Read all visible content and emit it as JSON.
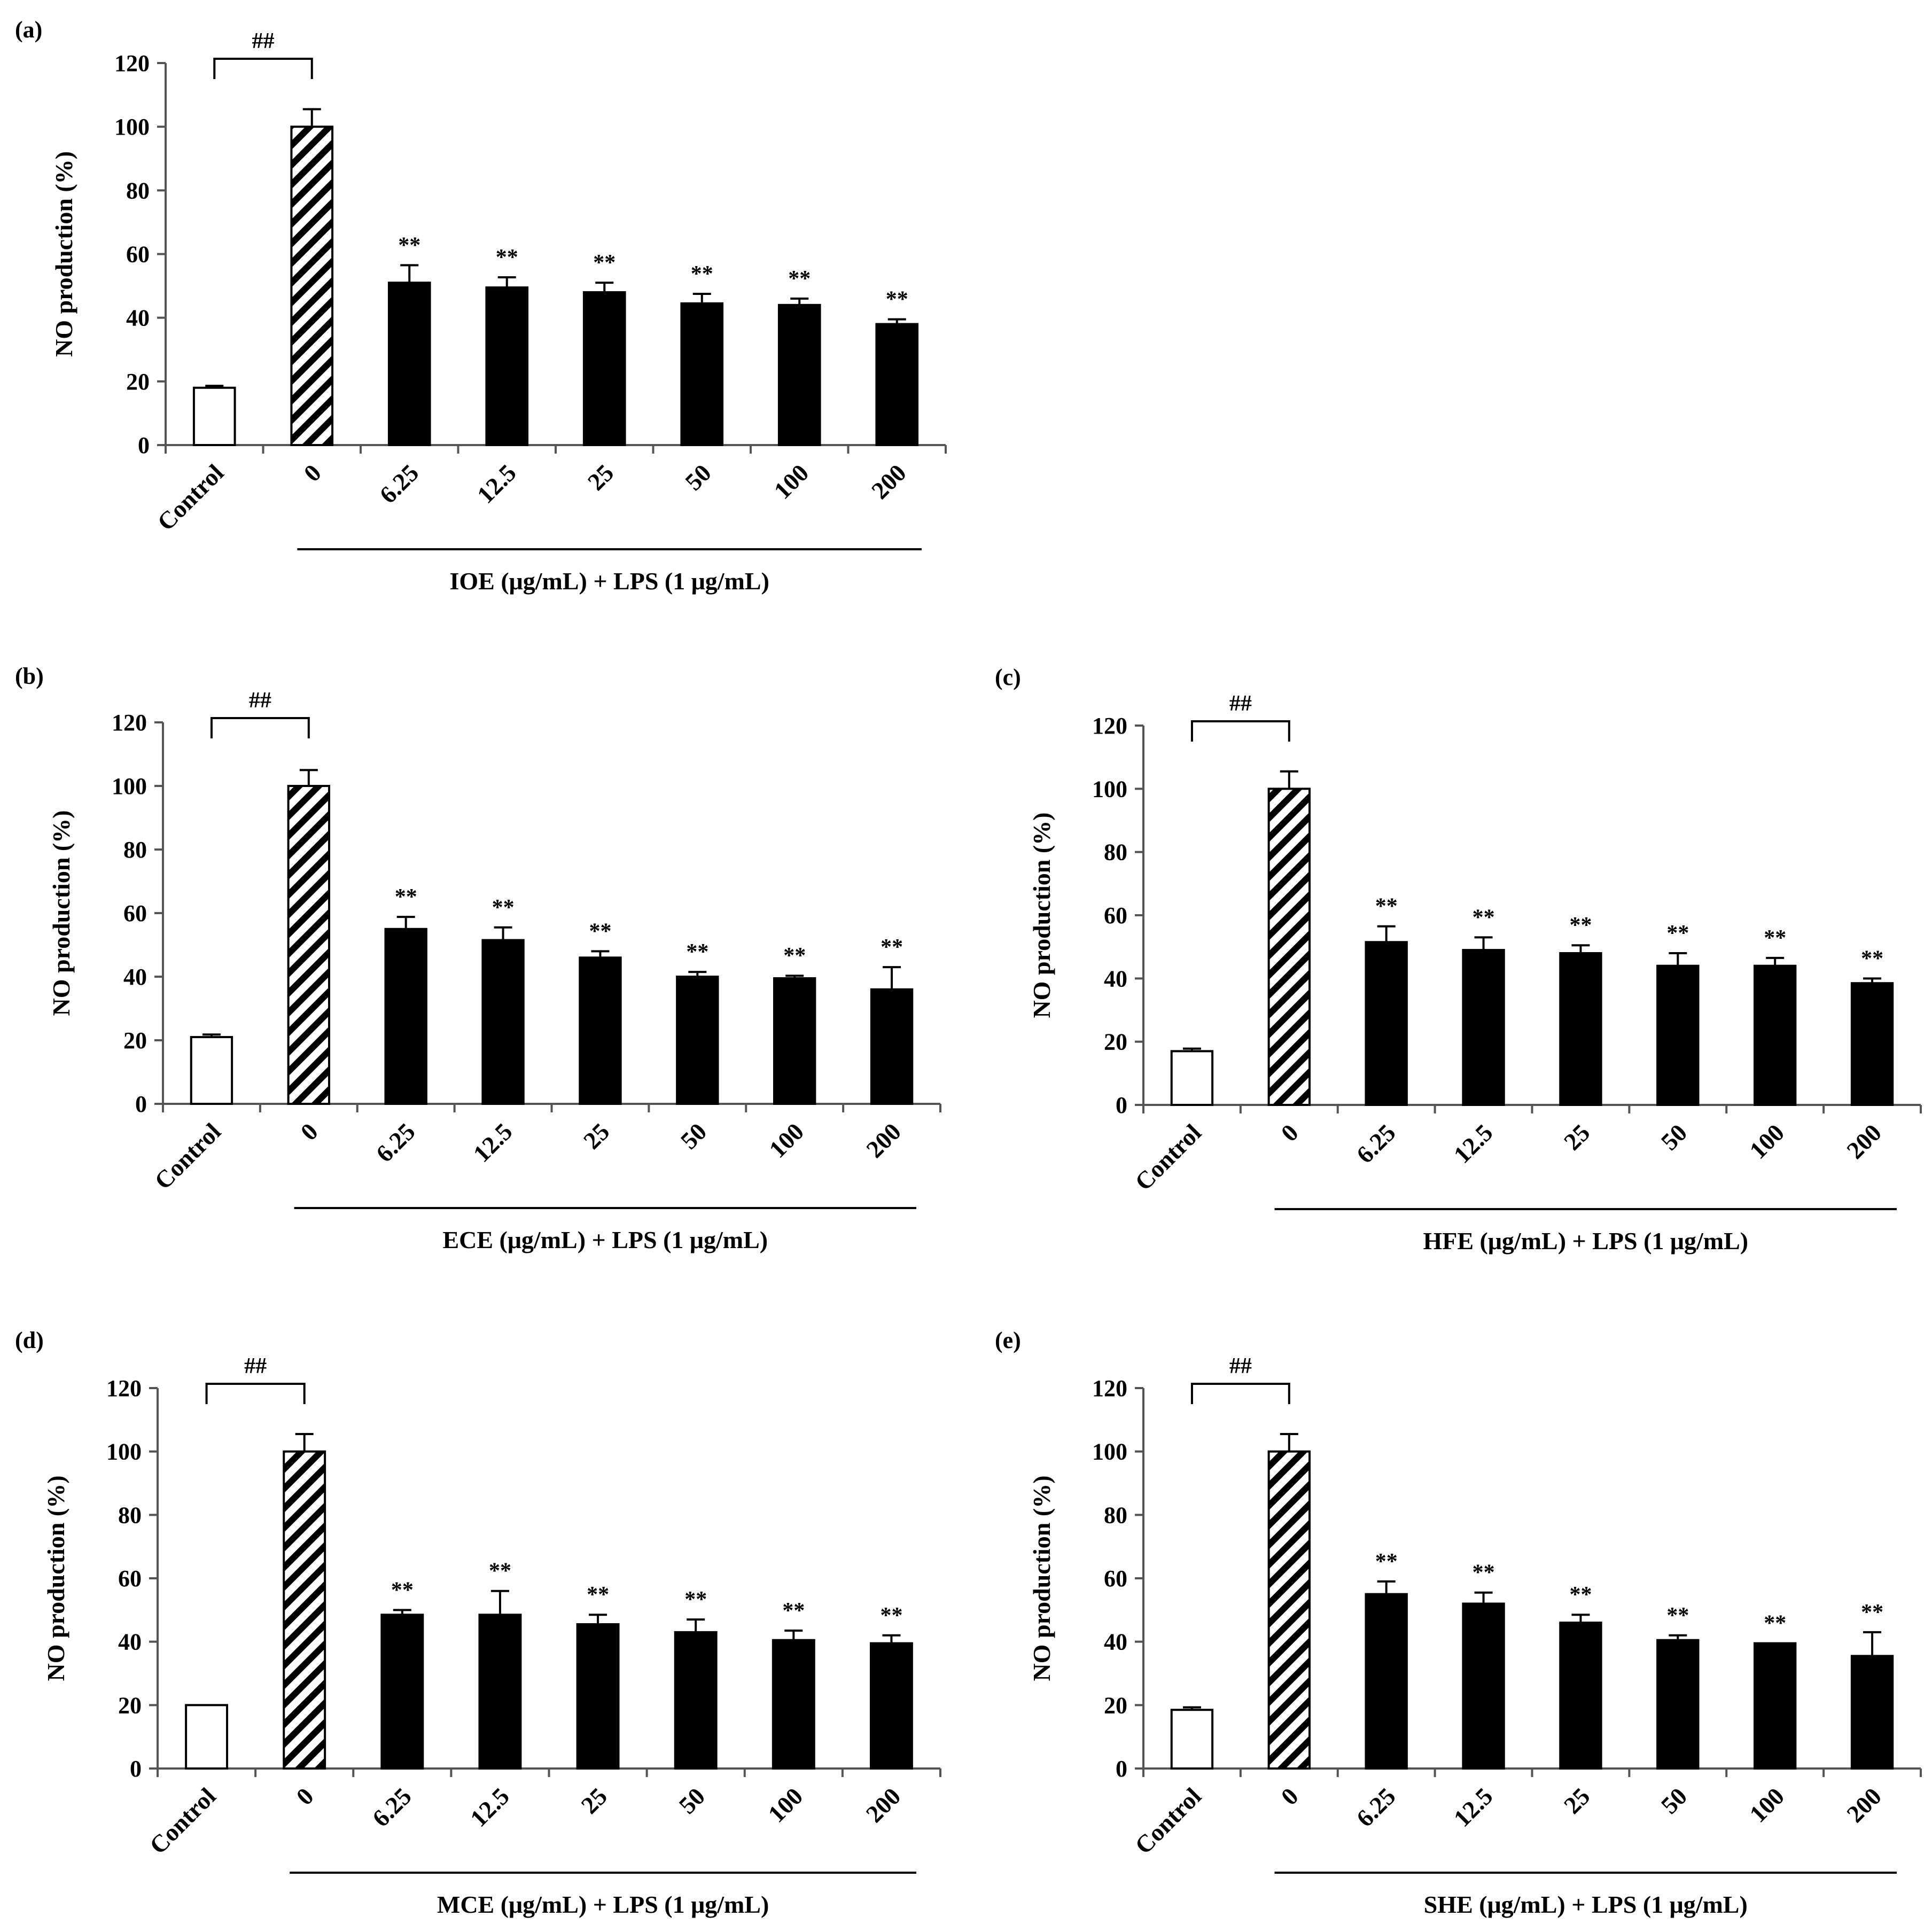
{
  "chart_data": [
    {
      "panel": "(a)",
      "type": "bar",
      "ylabel": "NO production (%)",
      "ylim": [
        0,
        120
      ],
      "yticks": [
        0,
        20,
        40,
        60,
        80,
        100,
        120
      ],
      "categories": [
        "Control",
        "0",
        "6.25",
        "12.5",
        "25",
        "50",
        "100",
        "200"
      ],
      "values": [
        18,
        100,
        51,
        49.5,
        48,
        44.5,
        44,
        38
      ],
      "errors": [
        0.6,
        5.5,
        5.5,
        3.2,
        3,
        3,
        2,
        1.5
      ],
      "fills": [
        "white",
        "hatch",
        "black",
        "black",
        "black",
        "black",
        "black",
        "black"
      ],
      "significance": [
        "",
        "",
        "**",
        "**",
        "**",
        "**",
        "**",
        "**"
      ],
      "bracket_label": "##",
      "group_label": "IOE (μg/mL) + LPS (1 μg/mL)"
    },
    {
      "panel": "(b)",
      "type": "bar",
      "ylabel": "NO production (%)",
      "ylim": [
        0,
        120
      ],
      "yticks": [
        0,
        20,
        40,
        60,
        80,
        100,
        120
      ],
      "categories": [
        "Control",
        "0",
        "6.25",
        "12.5",
        "25",
        "50",
        "100",
        "200"
      ],
      "values": [
        21,
        100,
        55,
        51.5,
        46,
        40,
        39.5,
        36
      ],
      "errors": [
        0.8,
        5,
        3.8,
        4,
        2,
        1.5,
        0.8,
        7
      ],
      "fills": [
        "white",
        "hatch",
        "black",
        "black",
        "black",
        "black",
        "black",
        "black"
      ],
      "significance": [
        "",
        "",
        "**",
        "**",
        "**",
        "**",
        "**",
        "**"
      ],
      "bracket_label": "##",
      "group_label": "ECE (μg/mL) + LPS (1 μg/mL)"
    },
    {
      "panel": "(c)",
      "type": "bar",
      "ylabel": "NO production (%)",
      "ylim": [
        0,
        120
      ],
      "yticks": [
        0,
        20,
        40,
        60,
        80,
        100,
        120
      ],
      "categories": [
        "Control",
        "0",
        "6.25",
        "12.5",
        "25",
        "50",
        "100",
        "200"
      ],
      "values": [
        17,
        100,
        51.5,
        49,
        48,
        44,
        44,
        38.5
      ],
      "errors": [
        0.8,
        5.5,
        5,
        4,
        2.5,
        4,
        2.5,
        1.5
      ],
      "fills": [
        "white",
        "hatch",
        "black",
        "black",
        "black",
        "black",
        "black",
        "black"
      ],
      "significance": [
        "",
        "",
        "**",
        "**",
        "**",
        "**",
        "**",
        "**"
      ],
      "bracket_label": "##",
      "group_label": "HFE (μg/mL) + LPS (1 μg/mL)"
    },
    {
      "panel": "(d)",
      "type": "bar",
      "ylabel": "NO production (%)",
      "ylim": [
        0,
        120
      ],
      "yticks": [
        0,
        20,
        40,
        60,
        80,
        100,
        120
      ],
      "categories": [
        "Control",
        "0",
        "6.25",
        "12.5",
        "25",
        "50",
        "100",
        "200"
      ],
      "values": [
        20,
        100,
        48.5,
        48.5,
        45.5,
        43,
        40.5,
        39.5
      ],
      "errors": [
        0,
        5.5,
        1.5,
        7.5,
        3,
        4,
        3,
        2.5
      ],
      "fills": [
        "white",
        "hatch",
        "black",
        "black",
        "black",
        "black",
        "black",
        "black"
      ],
      "significance": [
        "",
        "",
        "**",
        "**",
        "**",
        "**",
        "**",
        "**"
      ],
      "bracket_label": "##",
      "group_label": "MCE (μg/mL) + LPS (1 μg/mL)"
    },
    {
      "panel": "(e)",
      "type": "bar",
      "ylabel": "NO production (%)",
      "ylim": [
        0,
        120
      ],
      "yticks": [
        0,
        20,
        40,
        60,
        80,
        100,
        120
      ],
      "categories": [
        "Control",
        "0",
        "6.25",
        "12.5",
        "25",
        "50",
        "100",
        "200"
      ],
      "values": [
        18.5,
        100,
        55,
        52,
        46,
        40.5,
        39.5,
        35.5
      ],
      "errors": [
        0.8,
        5.5,
        4,
        3.5,
        2.5,
        1.5,
        0,
        7.5
      ],
      "fills": [
        "white",
        "hatch",
        "black",
        "black",
        "black",
        "black",
        "black",
        "black"
      ],
      "significance": [
        "",
        "",
        "**",
        "**",
        "**",
        "**",
        "**",
        "**"
      ],
      "bracket_label": "##",
      "group_label": "SHE (μg/mL) + LPS (1 μg/mL)"
    }
  ]
}
